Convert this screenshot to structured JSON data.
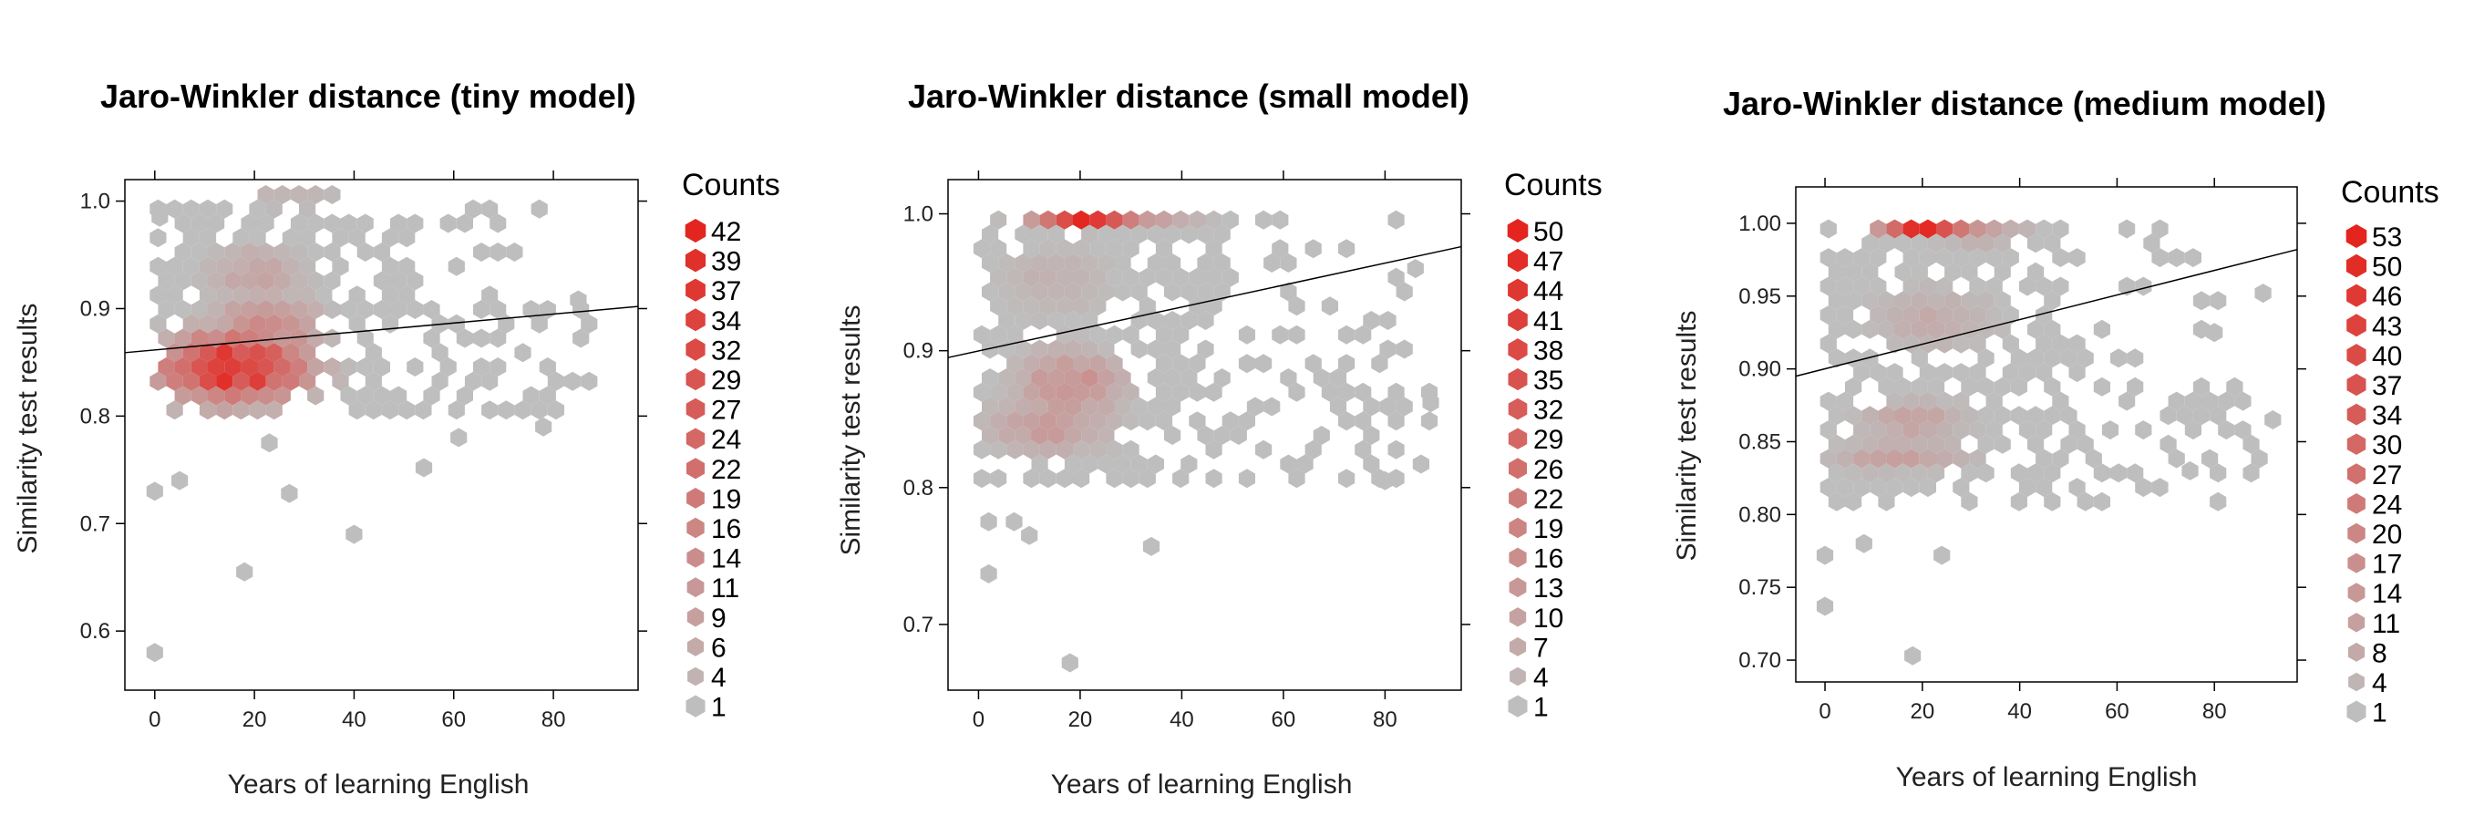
{
  "chart_data": [
    {
      "type": "scatter",
      "subtype": "hexbin",
      "title": "Jaro-Winkler distance (tiny model)",
      "xlabel": "Years of learning English",
      "ylabel": "Similarity test results",
      "xlim": [
        -6,
        97
      ],
      "ylim": [
        0.545,
        1.02
      ],
      "xticks": [
        0,
        20,
        40,
        60,
        80
      ],
      "xtick_labels": [
        "0",
        "20",
        "40",
        "60",
        "80"
      ],
      "yticks": [
        0.6,
        0.7,
        0.8,
        0.9,
        1.0
      ],
      "ytick_labels": [
        "0.6",
        "0.7",
        "0.8",
        "0.9",
        "1.0"
      ],
      "legend_title": "Counts",
      "legend_labels": [
        "42",
        "39",
        "37",
        "34",
        "32",
        "29",
        "27",
        "24",
        "22",
        "19",
        "16",
        "14",
        "11",
        "9",
        "6",
        "4",
        "1"
      ],
      "max_count": 42,
      "fit_line": {
        "x": [
          -6,
          97
        ],
        "y": [
          0.859,
          0.902
        ]
      },
      "dense_clusters": [
        {
          "x": 16,
          "y": 0.845,
          "rx": 14,
          "ry": 0.03,
          "peak": 42
        },
        {
          "x": 22,
          "y": 0.88,
          "rx": 10,
          "ry": 0.03,
          "peak": 18
        },
        {
          "x": 30,
          "y": 1.0,
          "rx": 14,
          "ry": 0.006,
          "peak": 10
        },
        {
          "x": 20,
          "y": 0.93,
          "rx": 10,
          "ry": 0.03,
          "peak": 8
        }
      ],
      "light_regions": [
        {
          "x0": 0,
          "x1": 52,
          "y0": 0.8,
          "y1": 1.0,
          "p": 0.62
        },
        {
          "x0": 0,
          "x1": 88,
          "y0": 0.8,
          "y1": 0.9,
          "p": 0.45
        },
        {
          "x0": 20,
          "x1": 78,
          "y0": 0.9,
          "y1": 1.0,
          "p": 0.3
        }
      ],
      "outliers": [
        [
          0,
          0.58
        ],
        [
          0,
          0.73
        ],
        [
          18,
          0.655
        ],
        [
          40,
          0.69
        ],
        [
          27,
          0.728
        ],
        [
          54,
          0.752
        ],
        [
          61,
          0.78
        ],
        [
          78,
          0.79
        ],
        [
          5,
          0.74
        ],
        [
          85,
          0.908
        ],
        [
          1,
          0.985
        ],
        [
          23,
          0.775
        ]
      ]
    },
    {
      "type": "scatter",
      "subtype": "hexbin",
      "title": "Jaro-Winkler distance (small model)",
      "xlabel": "Years of learning English",
      "ylabel": "Similarity test results",
      "xlim": [
        -6,
        95
      ],
      "ylim": [
        0.652,
        1.025
      ],
      "xticks": [
        0,
        20,
        40,
        60,
        80
      ],
      "xtick_labels": [
        "0",
        "20",
        "40",
        "60",
        "80"
      ],
      "yticks": [
        0.7,
        0.8,
        0.9,
        1.0
      ],
      "ytick_labels": [
        "0.7",
        "0.8",
        "0.9",
        "1.0"
      ],
      "legend_title": "Counts",
      "legend_labels": [
        "50",
        "47",
        "44",
        "41",
        "38",
        "35",
        "32",
        "29",
        "26",
        "22",
        "19",
        "16",
        "13",
        "10",
        "7",
        "4",
        "1"
      ],
      "max_count": 50,
      "fit_line": {
        "x": [
          -6,
          95
        ],
        "y": [
          0.895,
          0.976
        ]
      },
      "dense_clusters": [
        {
          "x": 21,
          "y": 0.996,
          "rx": 10,
          "ry": 0.006,
          "peak": 50
        },
        {
          "x": 32,
          "y": 0.994,
          "rx": 10,
          "ry": 0.006,
          "peak": 14
        },
        {
          "x": 18,
          "y": 0.875,
          "rx": 10,
          "ry": 0.025,
          "peak": 16
        },
        {
          "x": 14,
          "y": 0.845,
          "rx": 12,
          "ry": 0.02,
          "peak": 12
        },
        {
          "x": 15,
          "y": 0.95,
          "rx": 10,
          "ry": 0.025,
          "peak": 6
        }
      ],
      "light_regions": [
        {
          "x0": 0,
          "x1": 48,
          "y0": 0.8,
          "y1": 1.0,
          "p": 0.65
        },
        {
          "x0": 0,
          "x1": 90,
          "y0": 0.8,
          "y1": 0.9,
          "p": 0.35
        },
        {
          "x0": 35,
          "x1": 85,
          "y0": 0.88,
          "y1": 1.0,
          "p": 0.28
        }
      ],
      "outliers": [
        [
          2,
          0.737
        ],
        [
          2,
          0.775
        ],
        [
          18,
          0.672
        ],
        [
          34,
          0.757
        ],
        [
          10,
          0.765
        ],
        [
          80,
          0.805
        ],
        [
          89,
          0.862
        ],
        [
          86,
          0.96
        ],
        [
          7,
          0.775
        ]
      ]
    },
    {
      "type": "scatter",
      "subtype": "hexbin",
      "title": "Jaro-Winkler distance (medium model)",
      "xlabel": "Years of learning English",
      "ylabel": "Similarity test results",
      "xlim": [
        -6,
        97
      ],
      "ylim": [
        0.685,
        1.025
      ],
      "xticks": [
        0,
        20,
        40,
        60,
        80
      ],
      "xtick_labels": [
        "0",
        "20",
        "40",
        "60",
        "80"
      ],
      "yticks": [
        0.7,
        0.75,
        0.8,
        0.85,
        0.9,
        0.95,
        1.0
      ],
      "ytick_labels": [
        "0.70",
        "0.75",
        "0.80",
        "0.85",
        "0.90",
        "0.95",
        "1.00"
      ],
      "legend_title": "Counts",
      "legend_labels": [
        "53",
        "50",
        "46",
        "43",
        "40",
        "37",
        "34",
        "30",
        "27",
        "24",
        "20",
        "17",
        "14",
        "11",
        "8",
        "4",
        "1"
      ],
      "max_count": 53,
      "fit_line": {
        "x": [
          -6,
          97
        ],
        "y": [
          0.895,
          0.982
        ]
      },
      "dense_clusters": [
        {
          "x": 21,
          "y": 0.997,
          "rx": 9,
          "ry": 0.005,
          "peak": 53
        },
        {
          "x": 30,
          "y": 0.993,
          "rx": 10,
          "ry": 0.006,
          "peak": 16
        },
        {
          "x": 18,
          "y": 0.865,
          "rx": 10,
          "ry": 0.012,
          "peak": 12
        },
        {
          "x": 16,
          "y": 0.84,
          "rx": 14,
          "ry": 0.01,
          "peak": 12
        },
        {
          "x": 22,
          "y": 0.935,
          "rx": 12,
          "ry": 0.02,
          "peak": 8
        }
      ],
      "light_regions": [
        {
          "x0": 0,
          "x1": 50,
          "y0": 0.8,
          "y1": 1.0,
          "p": 0.65
        },
        {
          "x0": 0,
          "x1": 90,
          "y0": 0.8,
          "y1": 0.88,
          "p": 0.35
        },
        {
          "x0": 35,
          "x1": 85,
          "y0": 0.88,
          "y1": 1.0,
          "p": 0.28
        }
      ],
      "outliers": [
        [
          0,
          0.737
        ],
        [
          0,
          0.772
        ],
        [
          18,
          0.703
        ],
        [
          24,
          0.772
        ],
        [
          8,
          0.78
        ],
        [
          75,
          0.83
        ],
        [
          92,
          0.865
        ],
        [
          90,
          0.952
        ],
        [
          80,
          0.925
        ]
      ]
    }
  ]
}
